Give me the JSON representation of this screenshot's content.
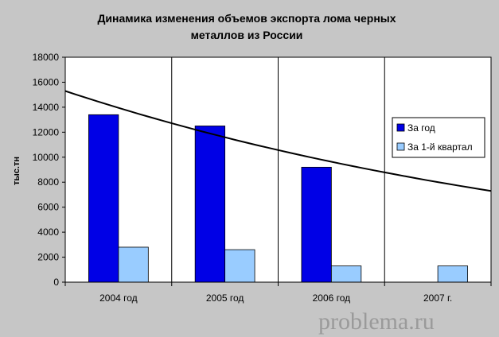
{
  "chart_data": {
    "type": "bar",
    "title_lines": [
      "Динамика изменения объемов экспорта лома черных",
      "металлов из России"
    ],
    "ylabel": "тыс.тн",
    "xlabel": "",
    "categories": [
      "2004 год",
      "2005 год",
      "2006 год",
      "2007 г."
    ],
    "ylim": [
      0,
      18000
    ],
    "yticks": [
      0,
      2000,
      4000,
      6000,
      8000,
      10000,
      12000,
      14000,
      16000,
      18000
    ],
    "grid": "vertical category lines",
    "legend_position": "right",
    "series": [
      {
        "name": "За год",
        "color": "#0000e6",
        "values": [
          13400,
          12500,
          9200,
          null
        ]
      },
      {
        "name": "За 1-й квартал",
        "color": "#99ccff",
        "values": [
          2800,
          2600,
          1300,
          1300
        ]
      }
    ],
    "trendline": {
      "type": "exponential",
      "color": "#000000",
      "values_at_edges": [
        15300,
        7300
      ]
    },
    "watermark": "problema.ru"
  }
}
